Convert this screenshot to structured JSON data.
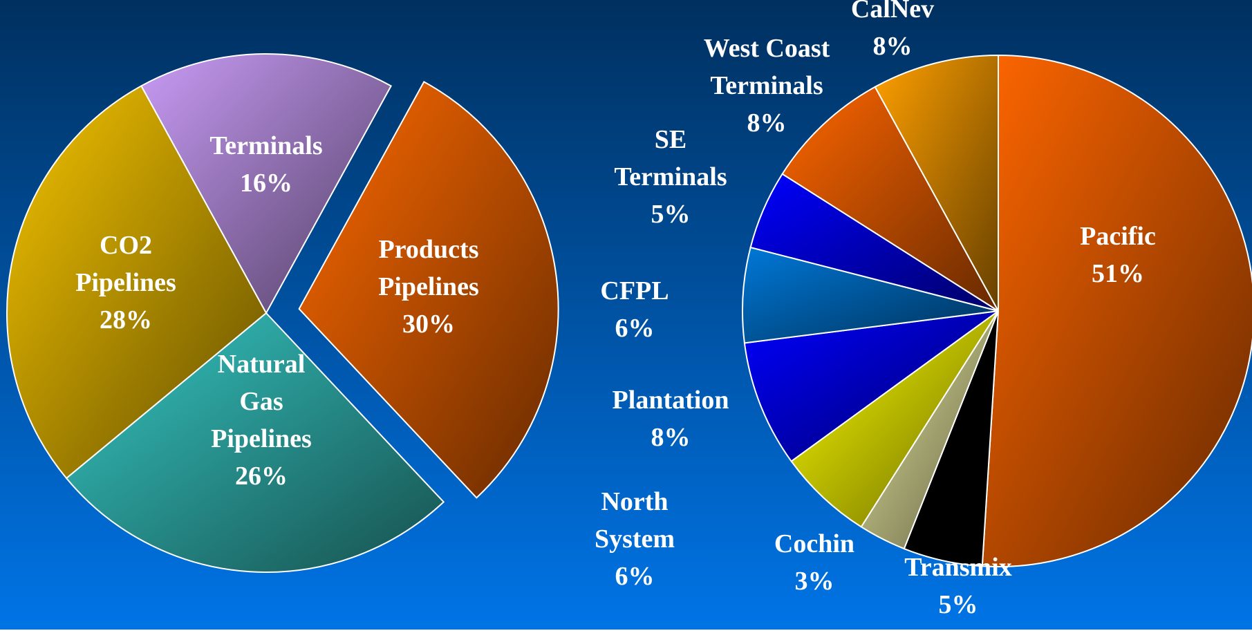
{
  "chart_data": [
    {
      "type": "pie",
      "categories": [
        "Terminals",
        "Products\nPipelines",
        "Natural\nGas\nPipelines",
        "CO2\nPipelines"
      ],
      "values": [
        16,
        30,
        26,
        28
      ],
      "value_labels": [
        "16%",
        "30%",
        "26%",
        "28%"
      ],
      "colors": [
        "#c89bf5",
        "#ff6a00",
        "#36c8c4",
        "#f5c400"
      ],
      "exploded": [
        false,
        true,
        false,
        false
      ]
    },
    {
      "type": "pie",
      "categories": [
        "Pacific",
        "Transmix",
        "Cochin",
        "North\nSystem",
        "Plantation",
        "CFPL",
        "SE\nTerminals",
        "West Coast\nTerminals",
        "CalNev"
      ],
      "values": [
        51,
        5,
        3,
        6,
        8,
        6,
        5,
        8,
        8
      ],
      "value_labels": [
        "51%",
        "5%",
        "3%",
        "6%",
        "8%",
        "6%",
        "5%",
        "8%",
        "8%"
      ],
      "colors": [
        "#ff6600",
        "#000000",
        "#e8e8a0",
        "#ffff00",
        "#0000ff",
        "#0078d8",
        "#0000ff",
        "#ff6600",
        "#ffa000"
      ],
      "exploded": [
        false,
        false,
        false,
        false,
        false,
        false,
        false,
        false,
        false
      ]
    }
  ]
}
